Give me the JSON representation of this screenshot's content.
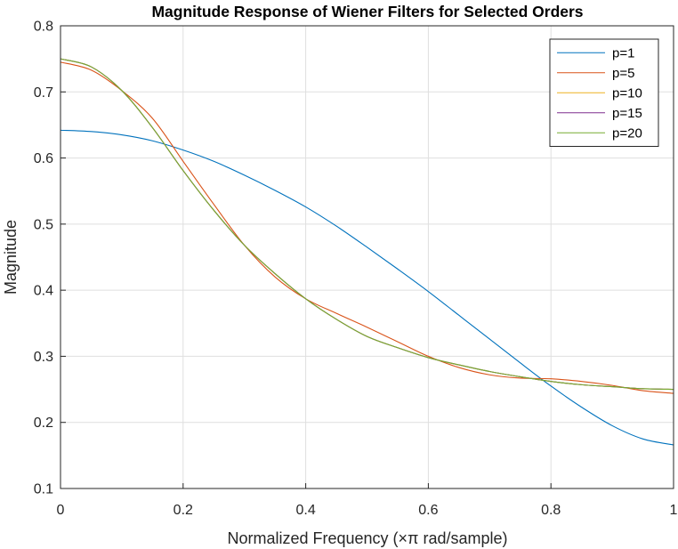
{
  "chart_data": {
    "type": "line",
    "title": "Magnitude Response of Wiener Filters for Selected Orders",
    "xlabel": "Normalized Frequency (×π rad/sample)",
    "ylabel": "Magnitude",
    "xlim": [
      0,
      1
    ],
    "ylim": [
      0.1,
      0.8
    ],
    "xticks": [
      "0",
      "0.2",
      "0.4",
      "0.6",
      "0.8",
      "1"
    ],
    "xtick_values": [
      0,
      0.2,
      0.4,
      0.6,
      0.8,
      1
    ],
    "yticks": [
      "0.1",
      "0.2",
      "0.3",
      "0.4",
      "0.5",
      "0.6",
      "0.7",
      "0.8"
    ],
    "ytick_values": [
      0.1,
      0.2,
      0.3,
      0.4,
      0.5,
      0.6,
      0.7,
      0.8
    ],
    "grid": true,
    "legend_position": "top-right",
    "x": [
      0,
      0.05,
      0.1,
      0.15,
      0.2,
      0.25,
      0.3,
      0.35,
      0.4,
      0.45,
      0.5,
      0.55,
      0.6,
      0.65,
      0.7,
      0.75,
      0.8,
      0.85,
      0.9,
      0.95,
      1.0
    ],
    "series": [
      {
        "name": "p=1",
        "color": "#0072BD",
        "values": [
          0.642,
          0.64,
          0.635,
          0.626,
          0.612,
          0.595,
          0.574,
          0.551,
          0.526,
          0.497,
          0.465,
          0.432,
          0.398,
          0.362,
          0.326,
          0.29,
          0.255,
          0.223,
          0.195,
          0.175,
          0.166
        ]
      },
      {
        "name": "p=5",
        "color": "#D95319",
        "values": [
          0.745,
          0.733,
          0.702,
          0.66,
          0.595,
          0.53,
          0.468,
          0.42,
          0.387,
          0.365,
          0.344,
          0.322,
          0.3,
          0.283,
          0.272,
          0.267,
          0.266,
          0.262,
          0.256,
          0.248,
          0.244
        ]
      },
      {
        "name": "p=10",
        "color": "#EDB120",
        "values": [
          0.75,
          0.738,
          0.702,
          0.646,
          0.581,
          0.521,
          0.468,
          0.425,
          0.387,
          0.356,
          0.33,
          0.313,
          0.298,
          0.287,
          0.277,
          0.269,
          0.262,
          0.257,
          0.254,
          0.251,
          0.25
        ]
      },
      {
        "name": "p=15",
        "color": "#7E2F8E",
        "values": [
          0.75,
          0.738,
          0.702,
          0.646,
          0.581,
          0.521,
          0.468,
          0.425,
          0.387,
          0.356,
          0.33,
          0.313,
          0.298,
          0.287,
          0.277,
          0.269,
          0.262,
          0.257,
          0.254,
          0.251,
          0.25
        ]
      },
      {
        "name": "p=20",
        "color": "#77AC30",
        "values": [
          0.75,
          0.738,
          0.702,
          0.646,
          0.581,
          0.521,
          0.468,
          0.425,
          0.387,
          0.356,
          0.33,
          0.313,
          0.298,
          0.287,
          0.277,
          0.269,
          0.262,
          0.257,
          0.254,
          0.251,
          0.25
        ]
      }
    ]
  }
}
